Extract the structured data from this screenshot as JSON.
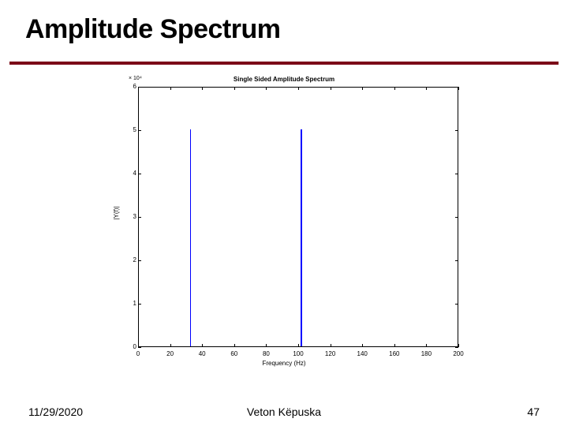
{
  "slide": {
    "title": "Amplitude Spectrum",
    "rule_color": "#7b0a17",
    "rule_thickness": 4
  },
  "chart": {
    "type": "line",
    "title": "Single Sided Amplitude Spectrum",
    "xlabel": "Frequency (Hz)",
    "ylabel": "|Y(f)|",
    "xlim": [
      0,
      200
    ],
    "ylim": [
      0,
      6
    ],
    "xtick_step": 20,
    "ytick_step": 1,
    "xticks": [
      0,
      20,
      40,
      60,
      80,
      100,
      120,
      140,
      160,
      180,
      200
    ],
    "yticks": [
      0,
      1,
      2,
      3,
      4,
      5,
      6
    ],
    "y_exponent": "× 10⁴",
    "line_color": "#0000ff",
    "background_color": "#ffffff",
    "axis_color": "#000000",
    "tick_length": 4,
    "data": {
      "peaks": [
        {
          "x": 32,
          "y": 5.0
        },
        {
          "x": 101,
          "y": 5.0
        }
      ]
    },
    "title_fontsize": 8,
    "label_fontsize": 8,
    "tick_fontsize": 8
  },
  "footer": {
    "date": "11/29/2020",
    "author": "Veton Këpuska",
    "page": "47"
  }
}
